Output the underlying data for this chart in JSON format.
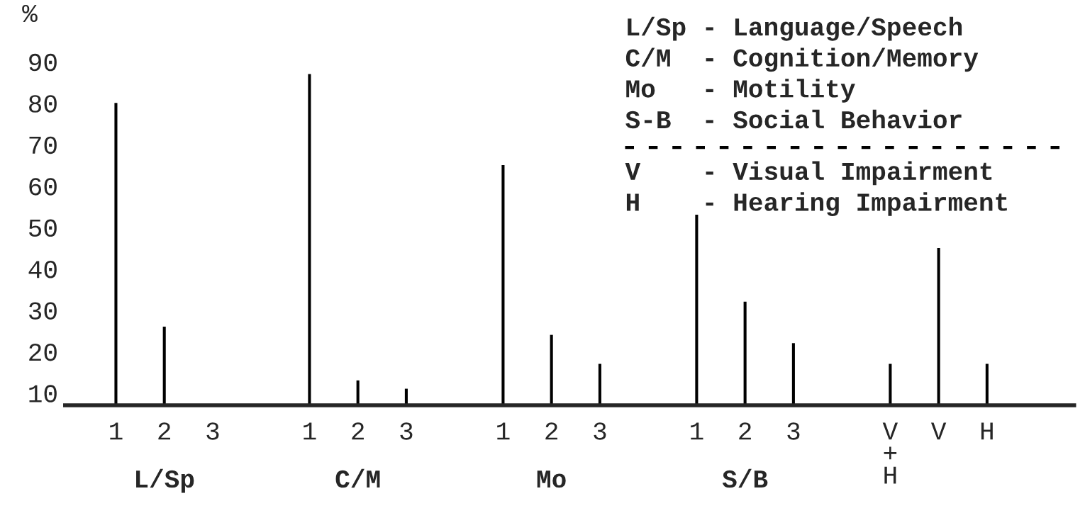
{
  "chart_data": {
    "type": "bar",
    "ylabel": "%",
    "categories": [
      "1",
      "2",
      "3",
      null,
      "1",
      "2",
      "3",
      null,
      "1",
      "2",
      "3",
      null,
      "1",
      "2",
      "3",
      null,
      "V\n+\nH",
      "V",
      "H"
    ],
    "values": [
      80,
      26,
      null,
      null,
      87,
      13,
      11,
      null,
      65,
      24,
      17,
      null,
      53,
      32,
      22,
      null,
      17,
      45,
      17
    ],
    "color": "#000000",
    "ylim": [
      7,
      90
    ],
    "yticks": [
      10,
      20,
      30,
      40,
      50,
      60,
      70,
      80,
      90
    ],
    "grid": false,
    "legend": false,
    "annotations": [
      "L/Sp",
      "C/M",
      "Mo",
      "S/B",
      "L/Sp - Language/Speech",
      "C/M  - Cognition/Memory",
      "Mo   - Motility",
      "S-B  - Social Behavior",
      "V    - Visual Impairment",
      "H    - Hearing Impairment"
    ]
  }
}
